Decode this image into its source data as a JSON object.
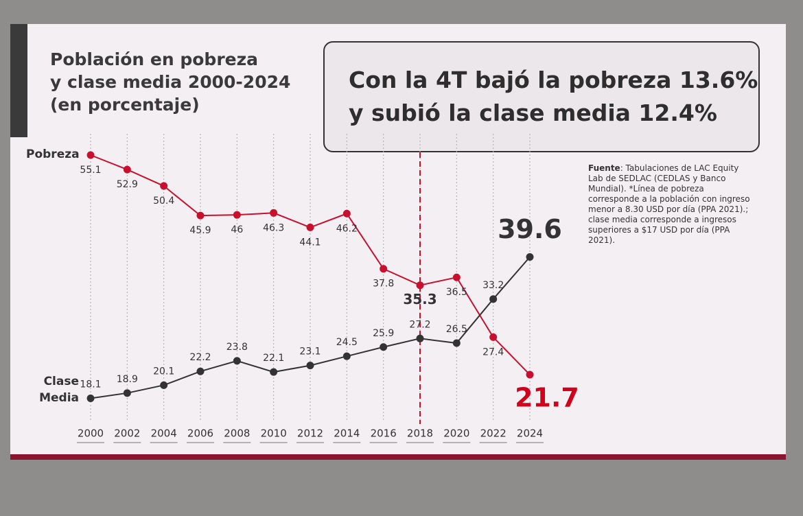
{
  "chart_data": {
    "type": "line",
    "title": [
      "Población en pobreza",
      "y clase media 2000-2024",
      "(en porcentaje)"
    ],
    "headline": [
      "Con la 4T bajó la pobreza 13.6%",
      "y subió la clase media 12.4%"
    ],
    "source_label": "Fuente",
    "source_text": ": Tabulaciones de LAC Equity Lab de SEDLAC (CEDLAS y Banco Mundial). *Línea de pobreza corresponde a la población con ingreso menor a 8.30 USD por día (PPA 2021).; clase media corresponde a ingresos superiores a $17 USD por día (PPA 2021).",
    "categories": [
      "2000",
      "2002",
      "2004",
      "2006",
      "2008",
      "2010",
      "2012",
      "2014",
      "2016",
      "2018",
      "2020",
      "2022",
      "2024"
    ],
    "series": [
      {
        "name": "Pobreza",
        "color": "#c8102e",
        "values": [
          55.1,
          52.9,
          50.4,
          45.9,
          46,
          46.3,
          44.1,
          46.2,
          37.8,
          35.3,
          36.5,
          27.4,
          21.7
        ]
      },
      {
        "name": "Clase Media",
        "color": "#333333",
        "values": [
          18.1,
          18.9,
          20.1,
          22.2,
          23.8,
          22.1,
          23.1,
          24.5,
          25.9,
          27.2,
          26.5,
          33.2,
          39.6
        ]
      }
    ]
  }
}
